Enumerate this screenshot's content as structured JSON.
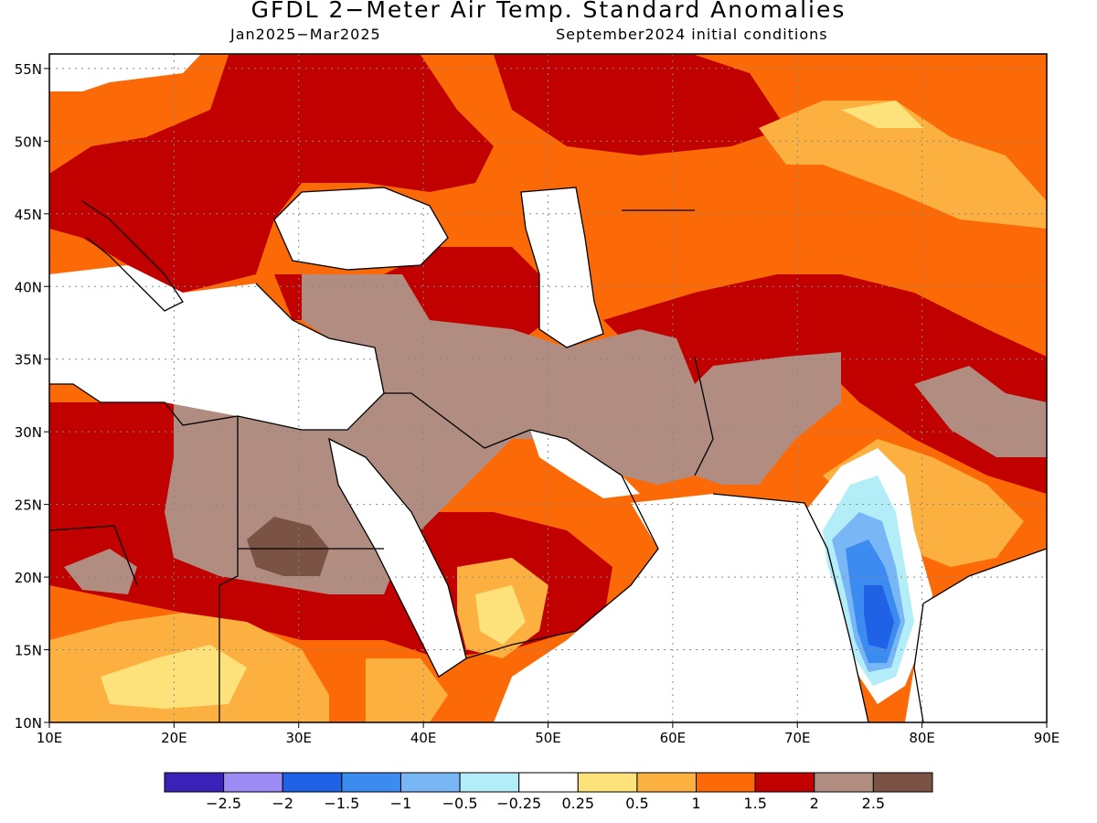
{
  "title": "GFDL 2−Meter Air Temp. Standard Anomalies",
  "period": "Jan2025−Mar2025",
  "init": "September2024 initial conditions",
  "map": {
    "lon_range": [
      10,
      90
    ],
    "lat_range": [
      10,
      56
    ],
    "lon_ticks": [
      "10E",
      "20E",
      "30E",
      "40E",
      "50E",
      "60E",
      "70E",
      "80E",
      "90E"
    ],
    "lat_ticks": [
      "10N",
      "15N",
      "20N",
      "25N",
      "30N",
      "35N",
      "40N",
      "45N",
      "50N",
      "55N"
    ]
  },
  "legend": {
    "colors": [
      "#3a22b8",
      "#9d8cf5",
      "#1f62e6",
      "#3c8bf0",
      "#78b6f5",
      "#b3eef8",
      "#ffffff",
      "#fde17a",
      "#fbb040",
      "#fb6a07",
      "#c10000",
      "#b08c81",
      "#7a5344"
    ],
    "labels": [
      "−2.5",
      "−2",
      "−1.5",
      "−1",
      "−0.5",
      "−0.25",
      "0.25",
      "0.5",
      "1",
      "1.5",
      "2",
      "2.5"
    ]
  },
  "colors": {
    "land_default": "#fb6a07",
    "dark_red": "#c10000",
    "brown": "#b08c81",
    "dark_brown": "#7a5344",
    "yellow": "#fde17a",
    "light_orange": "#fbb040",
    "light_blue": "#b3eef8",
    "mid_blue": "#78b6f5",
    "blue": "#3c8bf0",
    "deep_blue": "#1f62e6"
  }
}
